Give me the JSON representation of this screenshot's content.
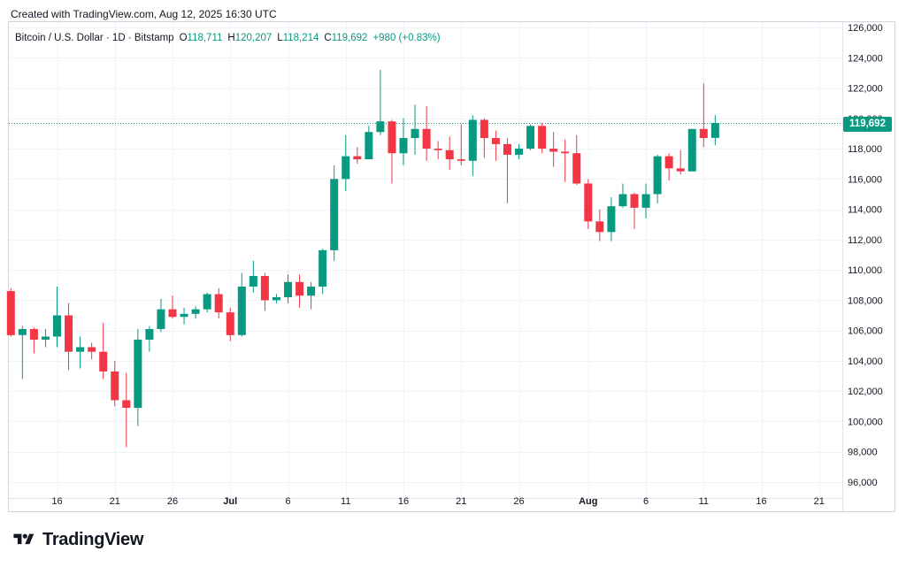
{
  "header": {
    "created_text": "Created with TradingView.com, Aug 12, 2025 16:30 UTC"
  },
  "legend": {
    "symbol": "Bitcoin / U.S. Dollar · 1D · Bitstamp",
    "open_label": "O",
    "open_value": "118,711",
    "high_label": "H",
    "high_value": "120,207",
    "low_label": "L",
    "low_value": "118,214",
    "close_label": "C",
    "close_value": "119,692",
    "change": "+980 (+0.83%)"
  },
  "price_badge": "119,692",
  "brand": {
    "name": "TradingView"
  },
  "colors": {
    "up": "#089981",
    "down": "#f23645",
    "grid": "#f0f3fa",
    "text": "#131722",
    "last_price_line": "#089981"
  },
  "chart_data": {
    "type": "candlestick",
    "title": "Bitcoin / U.S. Dollar · 1D · Bitstamp",
    "y_axis_side": "right",
    "ylim": [
      95000,
      127000
    ],
    "y_ticks": [
      96000,
      98000,
      100000,
      102000,
      104000,
      106000,
      108000,
      110000,
      112000,
      114000,
      116000,
      118000,
      120000,
      122000,
      124000,
      126000
    ],
    "y_tick_labels": [
      "96,000",
      "98,000",
      "100,000",
      "102,000",
      "104,000",
      "106,000",
      "108,000",
      "110,000",
      "112,000",
      "114,000",
      "116,000",
      "118,000",
      "120,000",
      "122,000",
      "124,000",
      "126,000"
    ],
    "x_ticks": [
      {
        "label": "16",
        "date": "2025-06-16"
      },
      {
        "label": "21",
        "date": "2025-06-21"
      },
      {
        "label": "26",
        "date": "2025-06-26"
      },
      {
        "label": "Jul",
        "date": "2025-07-01",
        "bold": true
      },
      {
        "label": "6",
        "date": "2025-07-06"
      },
      {
        "label": "11",
        "date": "2025-07-11"
      },
      {
        "label": "16",
        "date": "2025-07-16"
      },
      {
        "label": "21",
        "date": "2025-07-21"
      },
      {
        "label": "26",
        "date": "2025-07-26"
      },
      {
        "label": "Aug",
        "date": "2025-08-01",
        "bold": true
      },
      {
        "label": "6",
        "date": "2025-08-06"
      },
      {
        "label": "11",
        "date": "2025-08-11"
      },
      {
        "label": "16",
        "date": "2025-08-16"
      },
      {
        "label": "21",
        "date": "2025-08-21"
      }
    ],
    "x_range": [
      "2025-06-12",
      "2025-08-24"
    ],
    "last_price": 119692,
    "candles": [
      {
        "date": "2025-06-12",
        "o": 108600,
        "h": 108800,
        "l": 105600,
        "c": 105700
      },
      {
        "date": "2025-06-13",
        "o": 105700,
        "h": 106300,
        "l": 102800,
        "c": 106100
      },
      {
        "date": "2025-06-14",
        "o": 106100,
        "h": 106200,
        "l": 104500,
        "c": 105400
      },
      {
        "date": "2025-06-15",
        "o": 105400,
        "h": 106100,
        "l": 104900,
        "c": 105600
      },
      {
        "date": "2025-06-16",
        "o": 105600,
        "h": 108900,
        "l": 104900,
        "c": 107000
      },
      {
        "date": "2025-06-17",
        "o": 107000,
        "h": 107800,
        "l": 103400,
        "c": 104600
      },
      {
        "date": "2025-06-18",
        "o": 104600,
        "h": 105600,
        "l": 103500,
        "c": 104900
      },
      {
        "date": "2025-06-19",
        "o": 104900,
        "h": 105200,
        "l": 104100,
        "c": 104600
      },
      {
        "date": "2025-06-20",
        "o": 104600,
        "h": 106500,
        "l": 102800,
        "c": 103300
      },
      {
        "date": "2025-06-21",
        "o": 103300,
        "h": 104000,
        "l": 101000,
        "c": 101400
      },
      {
        "date": "2025-06-22",
        "o": 101400,
        "h": 103200,
        "l": 98300,
        "c": 100900
      },
      {
        "date": "2025-06-23",
        "o": 100900,
        "h": 106100,
        "l": 99700,
        "c": 105400
      },
      {
        "date": "2025-06-24",
        "o": 105400,
        "h": 106300,
        "l": 104600,
        "c": 106100
      },
      {
        "date": "2025-06-25",
        "o": 106100,
        "h": 108100,
        "l": 105900,
        "c": 107400
      },
      {
        "date": "2025-06-26",
        "o": 107400,
        "h": 108300,
        "l": 106800,
        "c": 106900
      },
      {
        "date": "2025-06-27",
        "o": 106900,
        "h": 107500,
        "l": 106400,
        "c": 107100
      },
      {
        "date": "2025-06-28",
        "o": 107100,
        "h": 107600,
        "l": 106800,
        "c": 107400
      },
      {
        "date": "2025-06-29",
        "o": 107400,
        "h": 108500,
        "l": 107200,
        "c": 108400
      },
      {
        "date": "2025-06-30",
        "o": 108400,
        "h": 108800,
        "l": 106800,
        "c": 107200
      },
      {
        "date": "2025-07-01",
        "o": 107200,
        "h": 107500,
        "l": 105300,
        "c": 105700
      },
      {
        "date": "2025-07-02",
        "o": 105700,
        "h": 109800,
        "l": 105600,
        "c": 108900
      },
      {
        "date": "2025-07-03",
        "o": 108900,
        "h": 110600,
        "l": 108500,
        "c": 109600
      },
      {
        "date": "2025-07-04",
        "o": 109600,
        "h": 109800,
        "l": 107300,
        "c": 108000
      },
      {
        "date": "2025-07-05",
        "o": 108000,
        "h": 108400,
        "l": 107800,
        "c": 108200
      },
      {
        "date": "2025-07-06",
        "o": 108200,
        "h": 109700,
        "l": 107800,
        "c": 109200
      },
      {
        "date": "2025-07-07",
        "o": 109200,
        "h": 109700,
        "l": 107500,
        "c": 108300
      },
      {
        "date": "2025-07-08",
        "o": 108300,
        "h": 109200,
        "l": 107400,
        "c": 108900
      },
      {
        "date": "2025-07-09",
        "o": 108900,
        "h": 111400,
        "l": 108400,
        "c": 111300
      },
      {
        "date": "2025-07-10",
        "o": 111300,
        "h": 116900,
        "l": 110600,
        "c": 116000
      },
      {
        "date": "2025-07-11",
        "o": 116000,
        "h": 118900,
        "l": 115200,
        "c": 117500
      },
      {
        "date": "2025-07-12",
        "o": 117500,
        "h": 118100,
        "l": 117000,
        "c": 117300
      },
      {
        "date": "2025-07-13",
        "o": 117300,
        "h": 119500,
        "l": 117300,
        "c": 119100
      },
      {
        "date": "2025-07-14",
        "o": 119100,
        "h": 123200,
        "l": 118900,
        "c": 119800
      },
      {
        "date": "2025-07-15",
        "o": 119800,
        "h": 119900,
        "l": 115700,
        "c": 117700
      },
      {
        "date": "2025-07-16",
        "o": 117700,
        "h": 120000,
        "l": 116900,
        "c": 118700
      },
      {
        "date": "2025-07-17",
        "o": 118700,
        "h": 120900,
        "l": 117600,
        "c": 119300
      },
      {
        "date": "2025-07-18",
        "o": 119300,
        "h": 120800,
        "l": 117200,
        "c": 118000
      },
      {
        "date": "2025-07-19",
        "o": 118000,
        "h": 118500,
        "l": 117300,
        "c": 117900
      },
      {
        "date": "2025-07-20",
        "o": 117900,
        "h": 118800,
        "l": 116600,
        "c": 117300
      },
      {
        "date": "2025-07-21",
        "o": 117300,
        "h": 119600,
        "l": 116900,
        "c": 117200
      },
      {
        "date": "2025-07-22",
        "o": 117200,
        "h": 120200,
        "l": 116200,
        "c": 119900
      },
      {
        "date": "2025-07-23",
        "o": 119900,
        "h": 120000,
        "l": 117400,
        "c": 118700
      },
      {
        "date": "2025-07-24",
        "o": 118700,
        "h": 119200,
        "l": 117200,
        "c": 118300
      },
      {
        "date": "2025-07-25",
        "o": 118300,
        "h": 118700,
        "l": 114400,
        "c": 117600
      },
      {
        "date": "2025-07-26",
        "o": 117600,
        "h": 118300,
        "l": 117300,
        "c": 118000
      },
      {
        "date": "2025-07-27",
        "o": 118000,
        "h": 119600,
        "l": 117900,
        "c": 119500
      },
      {
        "date": "2025-07-28",
        "o": 119500,
        "h": 119700,
        "l": 117700,
        "c": 118000
      },
      {
        "date": "2025-07-29",
        "o": 118000,
        "h": 119100,
        "l": 116800,
        "c": 117800
      },
      {
        "date": "2025-07-30",
        "o": 117800,
        "h": 118600,
        "l": 115800,
        "c": 117700
      },
      {
        "date": "2025-07-31",
        "o": 117700,
        "h": 118900,
        "l": 115600,
        "c": 115700
      },
      {
        "date": "2025-08-01",
        "o": 115700,
        "h": 116000,
        "l": 112700,
        "c": 113200
      },
      {
        "date": "2025-08-02",
        "o": 113200,
        "h": 114000,
        "l": 111900,
        "c": 112500
      },
      {
        "date": "2025-08-03",
        "o": 112500,
        "h": 114800,
        "l": 111900,
        "c": 114200
      },
      {
        "date": "2025-08-04",
        "o": 114200,
        "h": 115700,
        "l": 114100,
        "c": 115000
      },
      {
        "date": "2025-08-05",
        "o": 115000,
        "h": 115100,
        "l": 112700,
        "c": 114100
      },
      {
        "date": "2025-08-06",
        "o": 114100,
        "h": 115700,
        "l": 113400,
        "c": 115000
      },
      {
        "date": "2025-08-07",
        "o": 115000,
        "h": 117600,
        "l": 114400,
        "c": 117500
      },
      {
        "date": "2025-08-08",
        "o": 117500,
        "h": 117700,
        "l": 115900,
        "c": 116700
      },
      {
        "date": "2025-08-09",
        "o": 116700,
        "h": 117900,
        "l": 116300,
        "c": 116500
      },
      {
        "date": "2025-08-10",
        "o": 116500,
        "h": 119300,
        "l": 116500,
        "c": 119300
      },
      {
        "date": "2025-08-11",
        "o": 119300,
        "h": 122300,
        "l": 118100,
        "c": 118700
      },
      {
        "date": "2025-08-12",
        "o": 118711,
        "h": 120207,
        "l": 118214,
        "c": 119692
      }
    ]
  }
}
